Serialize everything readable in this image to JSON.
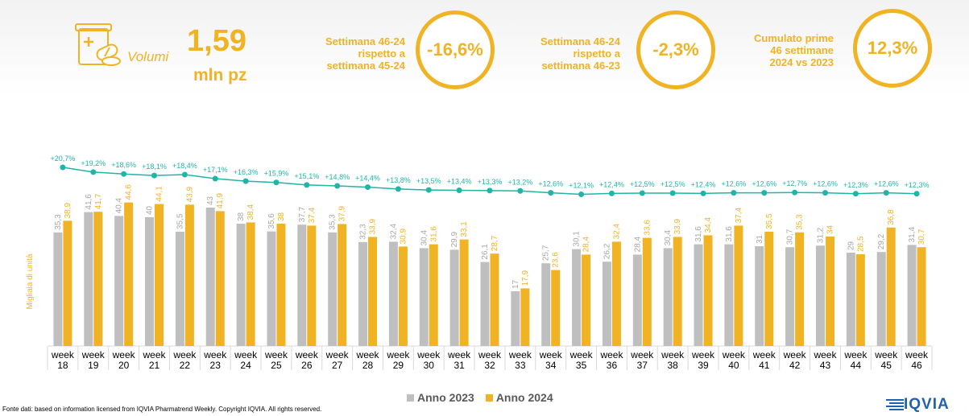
{
  "header": {
    "volume_label": "Volumi",
    "volume_value": "1,59",
    "volume_unit": "mln pz",
    "kpis": [
      {
        "line1": "Settimana 46-24",
        "line2": "rispetto a",
        "line3": "settimana 45-24",
        "value": "-16,6%"
      },
      {
        "line1": "Settimana 46-24",
        "line2": "rispetto a",
        "line3": "settimana 46-23",
        "value": "-2,3%"
      },
      {
        "line1": "Cumulato prime",
        "line2": "46 settimane",
        "line3": "2024 vs 2023",
        "value": "12,3%"
      }
    ]
  },
  "colors": {
    "accent": "#f0b323",
    "series_2023": "#bfbfbf",
    "series_2024": "#f0b323",
    "growth_line": "#1fb5a7",
    "logo": "#1f63ae"
  },
  "chart_data": {
    "type": "bar",
    "ylabel": "Migliaia di unità",
    "categories": [
      "week 18",
      "week 19",
      "week 20",
      "week 21",
      "week 22",
      "week 23",
      "week 24",
      "week 25",
      "week 26",
      "week 27",
      "week 28",
      "week 29",
      "week 30",
      "week 31",
      "week 32",
      "week 33",
      "week 34",
      "week 35",
      "week 36",
      "week 37",
      "week 38",
      "week 39",
      "week 40",
      "week 41",
      "week 42",
      "week 43",
      "week 44",
      "week 45",
      "week 46"
    ],
    "series": [
      {
        "name": "Anno 2023",
        "values": [
          35.3,
          41.6,
          40.4,
          40.0,
          35.5,
          43.0,
          38.0,
          35.6,
          37.7,
          35.3,
          32.3,
          32.4,
          30.4,
          29.9,
          26.1,
          17.0,
          25.7,
          30.1,
          26.2,
          28.4,
          30.4,
          31.6,
          31.6,
          31.0,
          30.7,
          31.2,
          29.0,
          29.2,
          31.4
        ]
      },
      {
        "name": "Anno 2024",
        "values": [
          38.9,
          41.7,
          44.6,
          44.1,
          43.9,
          41.9,
          38.4,
          38.0,
          37.4,
          37.9,
          33.9,
          30.9,
          31.6,
          33.1,
          28.7,
          17.9,
          23.6,
          28.4,
          32.4,
          33.6,
          33.9,
          34.4,
          37.4,
          35.5,
          35.3,
          34.0,
          28.5,
          36.8,
          30.7
        ]
      }
    ],
    "bar_labels_2023": [
      "35,3",
      "41,6",
      "40,4",
      "40",
      "35,5",
      "43",
      "38",
      "35,6",
      "37,7",
      "35,3",
      "32,3",
      "32,4",
      "30,4",
      "29,9",
      "26,1",
      "17",
      "25,7",
      "30,1",
      "26,2",
      "28,4",
      "30,4",
      "31,6",
      "31,6",
      "31",
      "30,7",
      "31,2",
      "29",
      "29,2",
      "31,4"
    ],
    "bar_labels_2024": [
      "38,9",
      "41,7",
      "44,6",
      "44,1",
      "43,9",
      "41,9",
      "38,4",
      "38",
      "37,4",
      "37,9",
      "33,9",
      "30,9",
      "31,6",
      "33,1",
      "28,7",
      "17,9",
      "23,6",
      "28,4",
      "32,4",
      "33,6",
      "33,9",
      "34,4",
      "37,4",
      "35,5",
      "35,3",
      "34",
      "28,5",
      "36,8",
      "30,7"
    ],
    "growth_line": {
      "values": [
        20.7,
        19.2,
        18.6,
        18.1,
        18.4,
        17.1,
        16.3,
        15.9,
        15.1,
        14.8,
        14.4,
        13.8,
        13.5,
        13.4,
        13.3,
        13.2,
        12.6,
        12.1,
        12.4,
        12.5,
        12.5,
        12.4,
        12.6,
        12.6,
        12.7,
        12.6,
        12.3,
        12.6,
        12.3
      ],
      "labels": [
        "+20,7%",
        "+19,2%",
        "+18,6%",
        "+18,1%",
        "+18,4%",
        "+17,1%",
        "+16,3%",
        "+15,9%",
        "+15,1%",
        "+14,8%",
        "+14,4%",
        "+13,8%",
        "+13,5%",
        "+13,4%",
        "+13,3%",
        "+13,2%",
        "+12,6%",
        "+12,1%",
        "+12,4%",
        "+12,5%",
        "+12,5%",
        "+12,4%",
        "+12,6%",
        "+12,6%",
        "+12,7%",
        "+12,6%",
        "+12,3%",
        "+12,6%",
        "+12,3%"
      ]
    },
    "ylim": [
      0,
      45
    ],
    "legend": "bottom-center"
  },
  "legend": {
    "label_2023": "Anno 2023",
    "label_2024": "Anno 2024"
  },
  "footnote": "Fonte dati: based on information licensed from IQVIA Pharmatrend Weekly. Copyright IQVIA. All rights reserved.",
  "logo_text": "IQVIA"
}
